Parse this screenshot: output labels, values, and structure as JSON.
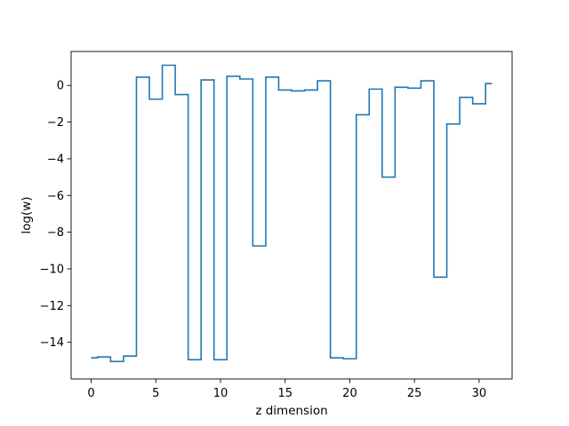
{
  "chart_data": {
    "type": "line",
    "drawstyle": "steps-mid",
    "title": "",
    "xlabel": "z dimension",
    "ylabel": "log(w)",
    "xlim": [
      -1.55,
      32.55
    ],
    "ylim": [
      -16.0,
      1.85
    ],
    "xticks": [
      0,
      5,
      10,
      15,
      20,
      25,
      30
    ],
    "yticks": [
      -14,
      -12,
      -10,
      -8,
      -6,
      -4,
      -2,
      0
    ],
    "grid": false,
    "legend": "none",
    "line_color": "#1f77b4",
    "series": [
      {
        "x": [
          0,
          1,
          2,
          3,
          4,
          5,
          6,
          7,
          8,
          9,
          10,
          11,
          12,
          13,
          14,
          15,
          16,
          17,
          18,
          19,
          20,
          21,
          22,
          23,
          24,
          25,
          26,
          27,
          28,
          29,
          30,
          31
        ],
        "values": [
          -14.85,
          -14.8,
          -15.05,
          -14.75,
          0.45,
          -0.75,
          1.1,
          -0.5,
          -14.95,
          0.3,
          -14.95,
          0.5,
          0.35,
          -8.75,
          0.45,
          -0.25,
          -0.3,
          -0.25,
          0.25,
          -14.85,
          -14.9,
          -1.6,
          -0.2,
          -5.0,
          -0.1,
          -0.15,
          0.25,
          -10.45,
          -2.1,
          -0.65,
          -1.0,
          0.1
        ]
      }
    ]
  }
}
